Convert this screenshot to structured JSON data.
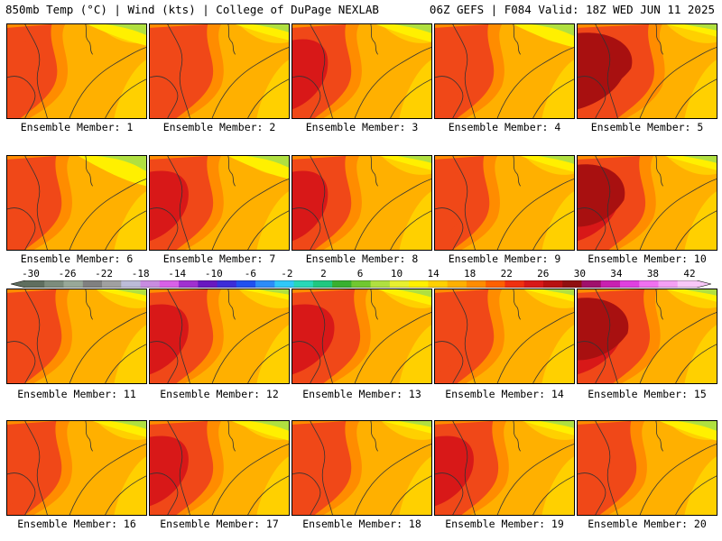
{
  "header": {
    "left_title": "850mb Temp (°C) | Wind (kts) | College of DuPage NEXLAB",
    "right_title": "06Z GEFS | F084 Valid: 18Z WED JUN 11 2025"
  },
  "panels": [
    {
      "label": "Ensemble Member: 1"
    },
    {
      "label": "Ensemble Member: 2"
    },
    {
      "label": "Ensemble Member: 3"
    },
    {
      "label": "Ensemble Member: 4"
    },
    {
      "label": "Ensemble Member: 5"
    },
    {
      "label": "Ensemble Member: 6"
    },
    {
      "label": "Ensemble Member: 7"
    },
    {
      "label": "Ensemble Member: 8"
    },
    {
      "label": "Ensemble Member: 9"
    },
    {
      "label": "Ensemble Member: 10"
    },
    {
      "label": "Ensemble Member: 11"
    },
    {
      "label": "Ensemble Member: 12"
    },
    {
      "label": "Ensemble Member: 13"
    },
    {
      "label": "Ensemble Member: 14"
    },
    {
      "label": "Ensemble Member: 15"
    },
    {
      "label": "Ensemble Member: 16"
    },
    {
      "label": "Ensemble Member: 17"
    },
    {
      "label": "Ensemble Member: 18"
    },
    {
      "label": "Ensemble Member: 19"
    },
    {
      "label": "Ensemble Member: 20"
    }
  ],
  "colorbar": {
    "labels": [
      "-30",
      "-26",
      "-22",
      "-18",
      "-14",
      "-10",
      "-6",
      "-2",
      "2",
      "6",
      "10",
      "14",
      "18",
      "22",
      "26",
      "30",
      "34",
      "38",
      "42"
    ],
    "colors": [
      "#5f6e5f",
      "#7c8c7c",
      "#98a898",
      "#808080",
      "#a0a0a0",
      "#bcbcd8",
      "#c88ce0",
      "#d860e8",
      "#a030d0",
      "#6818c0",
      "#3c2cd8",
      "#2050f0",
      "#2c8cf8",
      "#30c8f8",
      "#28d8b8",
      "#20c880",
      "#38b030",
      "#70c830",
      "#b0e040",
      "#e8f030",
      "#fff000",
      "#ffd000",
      "#ffb000",
      "#ff8c00",
      "#ff6000",
      "#f03010",
      "#d81818",
      "#b81010",
      "#901010",
      "#a0106c",
      "#c820b0",
      "#e040e0",
      "#f070f0",
      "#f4a0f4",
      "#f8c8f8"
    ]
  }
}
